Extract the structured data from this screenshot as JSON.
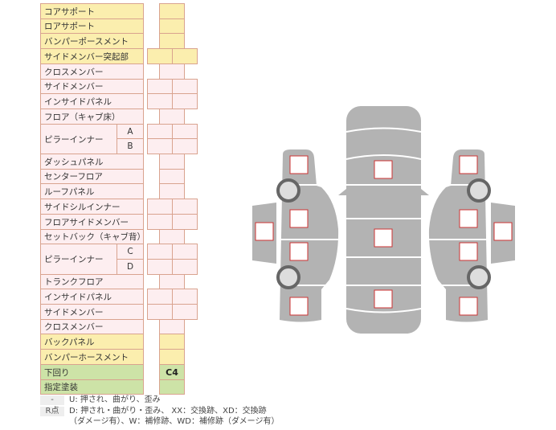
{
  "rows": [
    {
      "label": "コアサポート",
      "color": "y",
      "cells": 1
    },
    {
      "label": "ロアサポート",
      "color": "y",
      "cells": 1
    },
    {
      "label": "バンパーポースメント",
      "color": "y",
      "cells": 1
    },
    {
      "label": "サイドメンバー突起部",
      "color": "y",
      "cells": 2
    },
    {
      "label": "クロスメンバー",
      "color": "p",
      "cells": 1
    },
    {
      "label": "サイドメンバー",
      "color": "p",
      "cells": 2
    },
    {
      "label": "インサイドパネル",
      "color": "p",
      "cells": 2
    },
    {
      "label": "フロア（キャブ床）",
      "color": "p",
      "cells": 1
    },
    {
      "label": "ピラーインナー",
      "sub": "A",
      "color": "p",
      "cells": 2,
      "group_start": true
    },
    {
      "label": "",
      "sub": "B",
      "color": "p",
      "cells": 2
    },
    {
      "label": "ダッシュパネル",
      "color": "p",
      "cells": 1
    },
    {
      "label": "センターフロア",
      "color": "p",
      "cells": 1
    },
    {
      "label": "ルーフパネル",
      "color": "p",
      "cells": 1
    },
    {
      "label": "サイドシルインナー",
      "color": "p",
      "cells": 2
    },
    {
      "label": "フロアサイドメンバー",
      "color": "p",
      "cells": 2
    },
    {
      "label": "セットバック（キャブ背）",
      "color": "p",
      "cells": 1
    },
    {
      "label": "ピラーインナー",
      "sub": "C",
      "color": "p",
      "cells": 2,
      "group_start": true
    },
    {
      "label": "",
      "sub": "D",
      "color": "p",
      "cells": 2
    },
    {
      "label": "トランクフロア",
      "color": "p",
      "cells": 1
    },
    {
      "label": "インサイドパネル",
      "color": "p",
      "cells": 2
    },
    {
      "label": "サイドメンバー",
      "color": "p",
      "cells": 2
    },
    {
      "label": "クロスメンバー",
      "color": "p",
      "cells": 1
    },
    {
      "label": "バックパネル",
      "color": "y",
      "cells": 1
    },
    {
      "label": "バンパーホースメント",
      "color": "y",
      "cells": 1
    },
    {
      "label": "下回り",
      "color": "g",
      "cells": 1,
      "value": "C4"
    },
    {
      "label": "指定塗装",
      "color": "g",
      "cells": 1
    }
  ],
  "legend": [
    {
      "key": "-",
      "text": "U: 押され、曲がり、歪み"
    },
    {
      "key": "R点",
      "text": "D: 押され・曲がり・歪み、 XX：交換跡、XD：交換跡",
      "text2": "（ダメージ有）、W：補修跡、WD：補修跡（ダメージ有）"
    }
  ],
  "colors": {
    "yellow": "#fbeeae",
    "pink": "#fdeef0",
    "green": "#cde3a7",
    "border": "#d9a38f",
    "car": "#b3b3b3",
    "marker": "#cc3333"
  }
}
